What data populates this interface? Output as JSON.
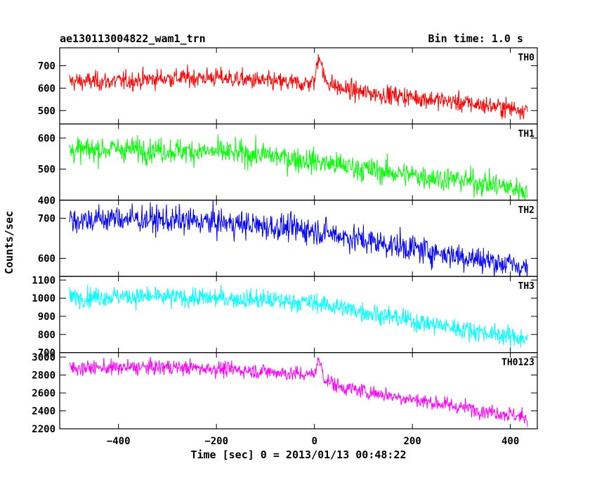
{
  "chart_data": {
    "type": "line",
    "title": "ae130113004822_wam1_trn",
    "bin_time_label": "Bin time: 1.0 s",
    "xlabel": "Time [sec] 0 = 2013/01/13 00:48:22",
    "ylabel": "Counts/sec",
    "xlim": [
      -520,
      455
    ],
    "xticks": [
      -400,
      -200,
      0,
      200,
      400
    ],
    "grid": false,
    "panels": [
      {
        "name": "TH0",
        "color": "#ff0000",
        "ylim": [
          440,
          780
        ],
        "yticks": [
          500,
          600,
          700
        ],
        "x": [
          -500,
          -400,
          -300,
          -200,
          -100,
          -20,
          0,
          5,
          10,
          15,
          20,
          30,
          50,
          100,
          200,
          300,
          400,
          435
        ],
        "y": [
          630,
          630,
          645,
          648,
          630,
          620,
          630,
          700,
          760,
          700,
          640,
          625,
          600,
          580,
          560,
          535,
          510,
          505
        ],
        "noise": 30
      },
      {
        "name": "TH1",
        "color": "#00ff00",
        "ylim": [
          400,
          645
        ],
        "yticks": [
          400,
          500,
          600
        ],
        "x": [
          -500,
          -400,
          -300,
          -200,
          -100,
          0,
          100,
          200,
          300,
          400,
          435
        ],
        "y": [
          560,
          565,
          560,
          555,
          545,
          525,
          500,
          480,
          465,
          440,
          430
        ],
        "noise": 28
      },
      {
        "name": "TH2",
        "color": "#0000ff",
        "ylim": [
          555,
          745
        ],
        "yticks": [
          600,
          700
        ],
        "x": [
          -500,
          -400,
          -300,
          -200,
          -100,
          0,
          100,
          200,
          300,
          400,
          435
        ],
        "y": [
          695,
          700,
          695,
          690,
          680,
          670,
          645,
          625,
          605,
          585,
          575
        ],
        "noise": 24
      },
      {
        "name": "TH3",
        "color": "#00ffff",
        "ylim": [
          700,
          1120
        ],
        "yticks": [
          700,
          800,
          900,
          1000,
          1100
        ],
        "x": [
          -500,
          -400,
          -300,
          -200,
          -100,
          0,
          100,
          200,
          300,
          400,
          435
        ],
        "y": [
          1005,
          1010,
          1005,
          1000,
          990,
          975,
          925,
          875,
          830,
          790,
          775
        ],
        "noise": 38
      },
      {
        "name": "TH0123",
        "color": "#ff00ff",
        "ylim": [
          2200,
          3050
        ],
        "yticks": [
          2200,
          2400,
          2600,
          2800,
          3000
        ],
        "x": [
          -500,
          -400,
          -300,
          -200,
          -100,
          -10,
          0,
          5,
          10,
          15,
          20,
          50,
          100,
          200,
          300,
          400,
          435
        ],
        "y": [
          2880,
          2880,
          2890,
          2870,
          2840,
          2800,
          2830,
          2900,
          2960,
          2880,
          2760,
          2670,
          2620,
          2530,
          2440,
          2360,
          2320
        ],
        "noise": 60
      }
    ]
  }
}
